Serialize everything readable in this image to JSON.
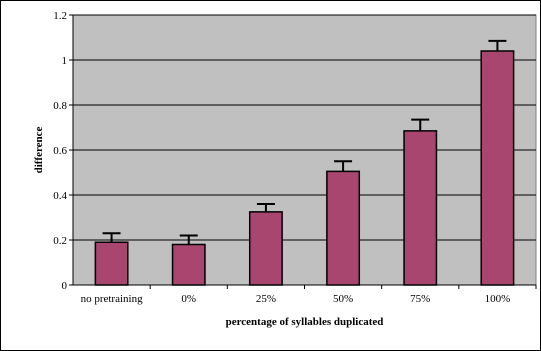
{
  "chart_data": {
    "type": "bar",
    "title": "",
    "xlabel": "percentage of syllables duplicated",
    "ylabel": "difference",
    "categories": [
      "no pretraining",
      "0%",
      "25%",
      "50%",
      "75%",
      "100%"
    ],
    "values": [
      0.19,
      0.18,
      0.325,
      0.505,
      0.685,
      1.04
    ],
    "error": [
      0.04,
      0.04,
      0.035,
      0.045,
      0.05,
      0.045
    ],
    "ylim": [
      0,
      1.2
    ],
    "yticks": [
      "0",
      "0.2",
      "0.4",
      "0.6",
      "0.8",
      "1",
      "1.2"
    ],
    "grid": true,
    "legend": "none",
    "colors": {
      "bar": "#A8466F",
      "plot_background": "#C0C0C0",
      "gridline": "#000000"
    }
  }
}
